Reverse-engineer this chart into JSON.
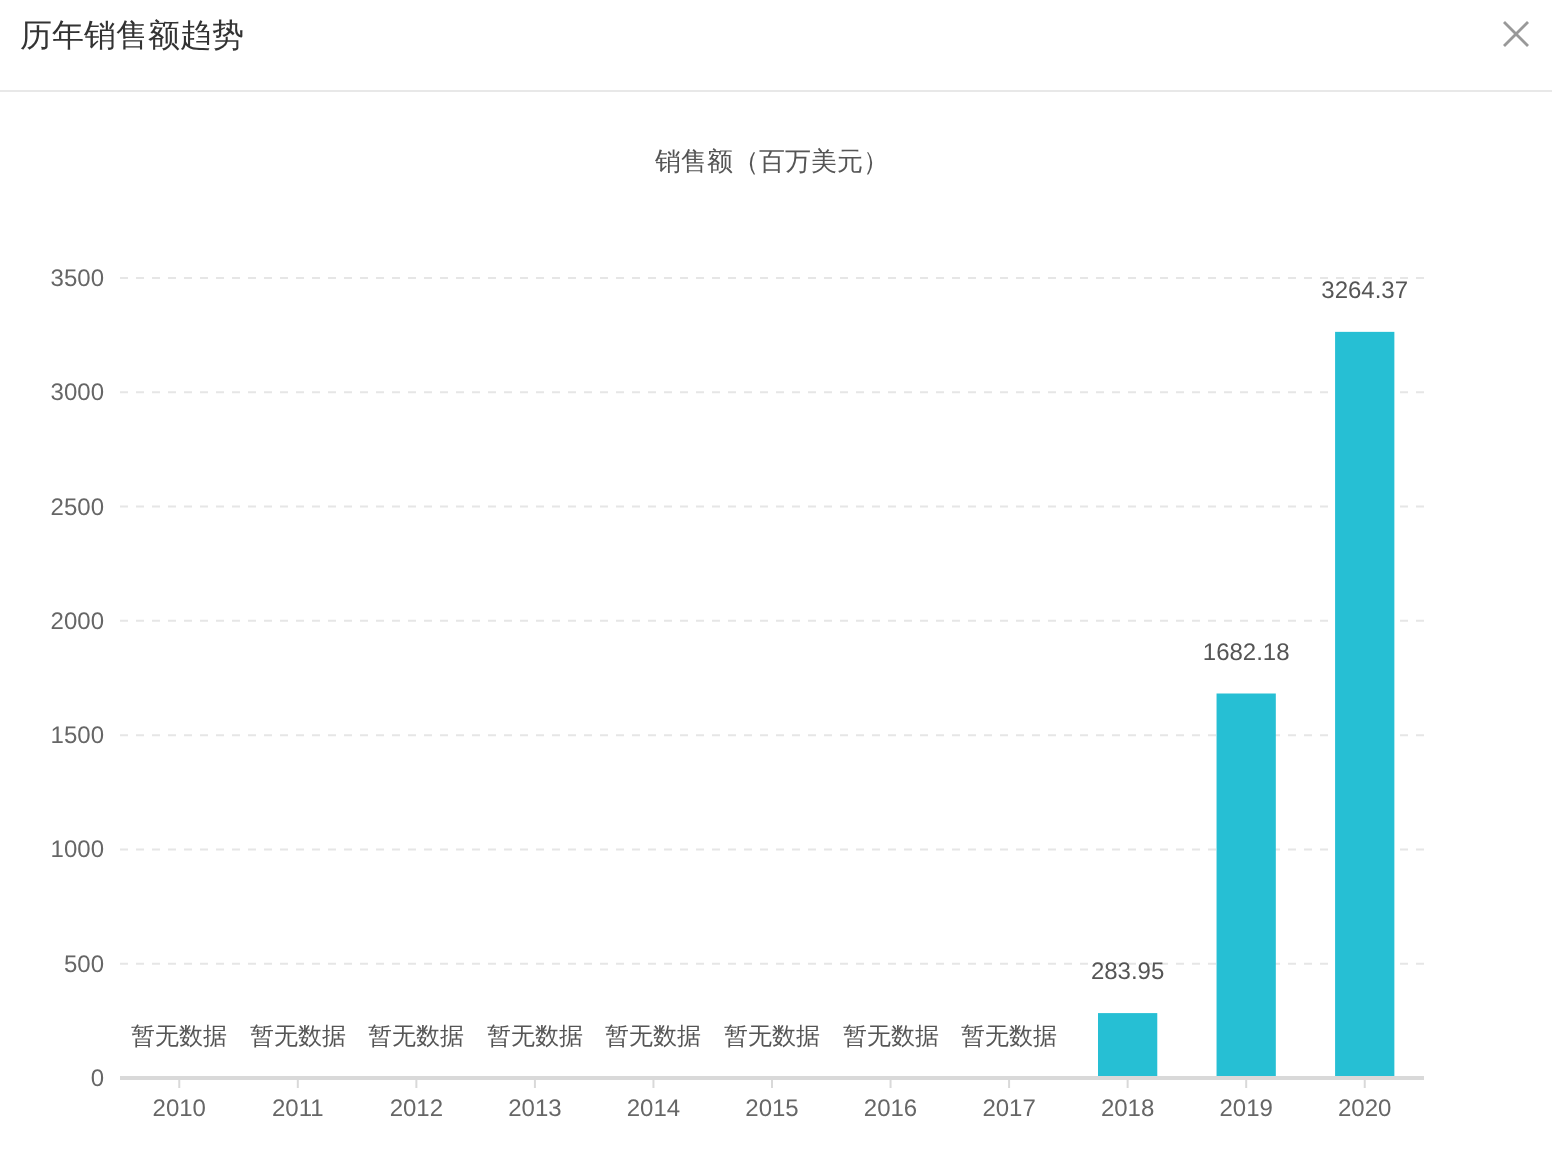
{
  "chart_data": {
    "type": "bar",
    "title": "历年销售额趋势",
    "subtitle": "销售额（百万美元）",
    "categories": [
      "2010",
      "2011",
      "2012",
      "2013",
      "2014",
      "2015",
      "2016",
      "2017",
      "2018",
      "2019",
      "2020"
    ],
    "values": [
      null,
      null,
      null,
      null,
      null,
      null,
      null,
      null,
      283.95,
      1682.18,
      3264.37
    ],
    "value_labels": [
      "暂无数据",
      "暂无数据",
      "暂无数据",
      "暂无数据",
      "暂无数据",
      "暂无数据",
      "暂无数据",
      "暂无数据",
      "283.95",
      "1682.18",
      "3264.37"
    ],
    "color": "#26bfd4",
    "ylim": [
      0,
      3500
    ],
    "yticks": [
      0,
      500,
      1000,
      1500,
      2000,
      2500,
      3000,
      3500
    ],
    "grid": "y"
  }
}
